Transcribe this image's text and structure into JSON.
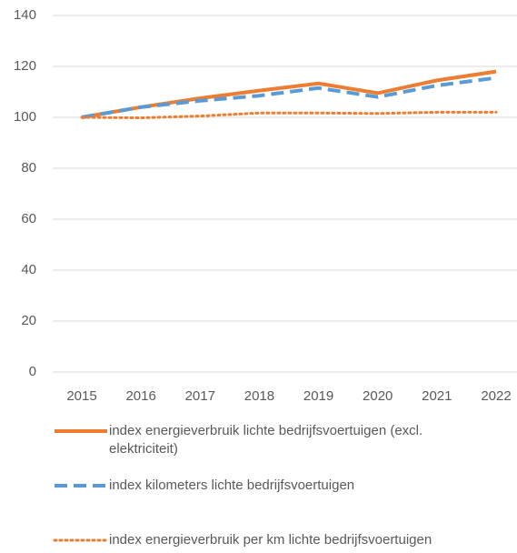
{
  "chart_data": {
    "type": "line",
    "x": [
      "2015",
      "2016",
      "2017",
      "2018",
      "2019",
      "2020",
      "2021",
      "2022"
    ],
    "series": [
      {
        "name": "index energieverbruik lichte bedrijfsvoertuigen (excl. elektriciteit)",
        "color": "#ed7d31",
        "style": "solid",
        "values": [
          100,
          104,
          107.5,
          110.5,
          113.3,
          109.5,
          114.5,
          118
        ]
      },
      {
        "name": "index kilometers lichte bedrijfsvoertuigen",
        "color": "#5b9bd5",
        "style": "dashed",
        "values": [
          100,
          104,
          106.5,
          108.5,
          111.5,
          108,
          112.5,
          115.5
        ]
      },
      {
        "name": "index energieverbruik per km lichte bedrijfsvoertuigen",
        "color": "#ed7d31",
        "style": "dotted",
        "values": [
          100,
          99.8,
          100.5,
          101.7,
          101.7,
          101.5,
          102,
          102
        ]
      }
    ],
    "ylim": [
      0,
      140
    ],
    "yticks": [
      0,
      20,
      40,
      60,
      80,
      100,
      120,
      140
    ],
    "grid": true
  }
}
